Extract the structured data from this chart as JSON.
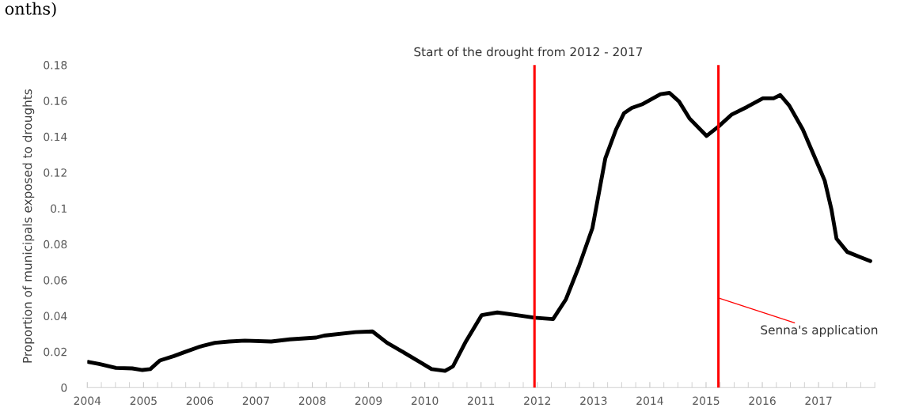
{
  "chart_data": {
    "type": "line",
    "title": "Start of the drought from 2012 - 2017",
    "ylabel": "Proportion of municipals exposed to droughts",
    "x": [
      2004.02,
      2004.21,
      2004.51,
      2004.8,
      2004.98,
      2005.12,
      2005.29,
      2005.54,
      2005.73,
      2006.01,
      2006.27,
      2006.52,
      2006.8,
      2007.27,
      2007.6,
      2008.07,
      2008.21,
      2008.77,
      2009.07,
      2009.33,
      2009.61,
      2009.94,
      2010.12,
      2010.36,
      2010.5,
      2010.73,
      2011.01,
      2011.29,
      2011.71,
      2011.95,
      2012.28,
      2012.51,
      2012.74,
      2012.98,
      2013.21,
      2013.4,
      2013.54,
      2013.68,
      2013.86,
      2014.19,
      2014.35,
      2014.52,
      2014.71,
      2015.01,
      2015.22,
      2015.45,
      2015.73,
      2016.01,
      2016.2,
      2016.32,
      2016.48,
      2016.72,
      2017.04,
      2017.11,
      2017.23,
      2017.32,
      2017.51,
      2017.74,
      2017.92
    ],
    "series": [
      {
        "color": "#000000",
        "values": [
          0.0143,
          0.0132,
          0.011,
          0.0107,
          0.0098,
          0.0103,
          0.0151,
          0.0176,
          0.0198,
          0.0229,
          0.025,
          0.0257,
          0.0262,
          0.0257,
          0.0269,
          0.0279,
          0.029,
          0.0309,
          0.0313,
          0.025,
          0.0199,
          0.0137,
          0.0103,
          0.0093,
          0.0118,
          0.0257,
          0.0404,
          0.0419,
          0.0401,
          0.039,
          0.0382,
          0.0493,
          0.0676,
          0.089,
          0.128,
          0.144,
          0.153,
          0.156,
          0.158,
          0.1637,
          0.1644,
          0.1596,
          0.15,
          0.1404,
          0.1456,
          0.1522,
          0.1566,
          0.1614,
          0.1614,
          0.1632,
          0.1573,
          0.144,
          0.1206,
          0.1154,
          0.0993,
          0.083,
          0.0757,
          0.0728,
          0.0706
        ]
      }
    ],
    "xlim": [
      2004,
      2018
    ],
    "xticks": [
      2004,
      2005,
      2006,
      2007,
      2008,
      2009,
      2010,
      2011,
      2012,
      2013,
      2014,
      2015,
      2016,
      2017
    ],
    "ylim": [
      0,
      0.18
    ],
    "yticks": [
      0,
      0.02,
      0.04,
      0.06,
      0.08,
      0.1,
      0.12,
      0.14,
      0.16,
      0.18
    ],
    "ref_lines": [
      {
        "axis": "x",
        "value": 2011.95,
        "color": "#ff0000"
      },
      {
        "axis": "x",
        "value": 2015.22,
        "color": "#ff0000"
      }
    ],
    "annotations": [
      {
        "text": "Senna's application",
        "x": 2015.22,
        "y": 0.05
      },
      "onths)"
    ],
    "grid": false,
    "legend": false,
    "marker": "none",
    "line_style": "solid"
  }
}
